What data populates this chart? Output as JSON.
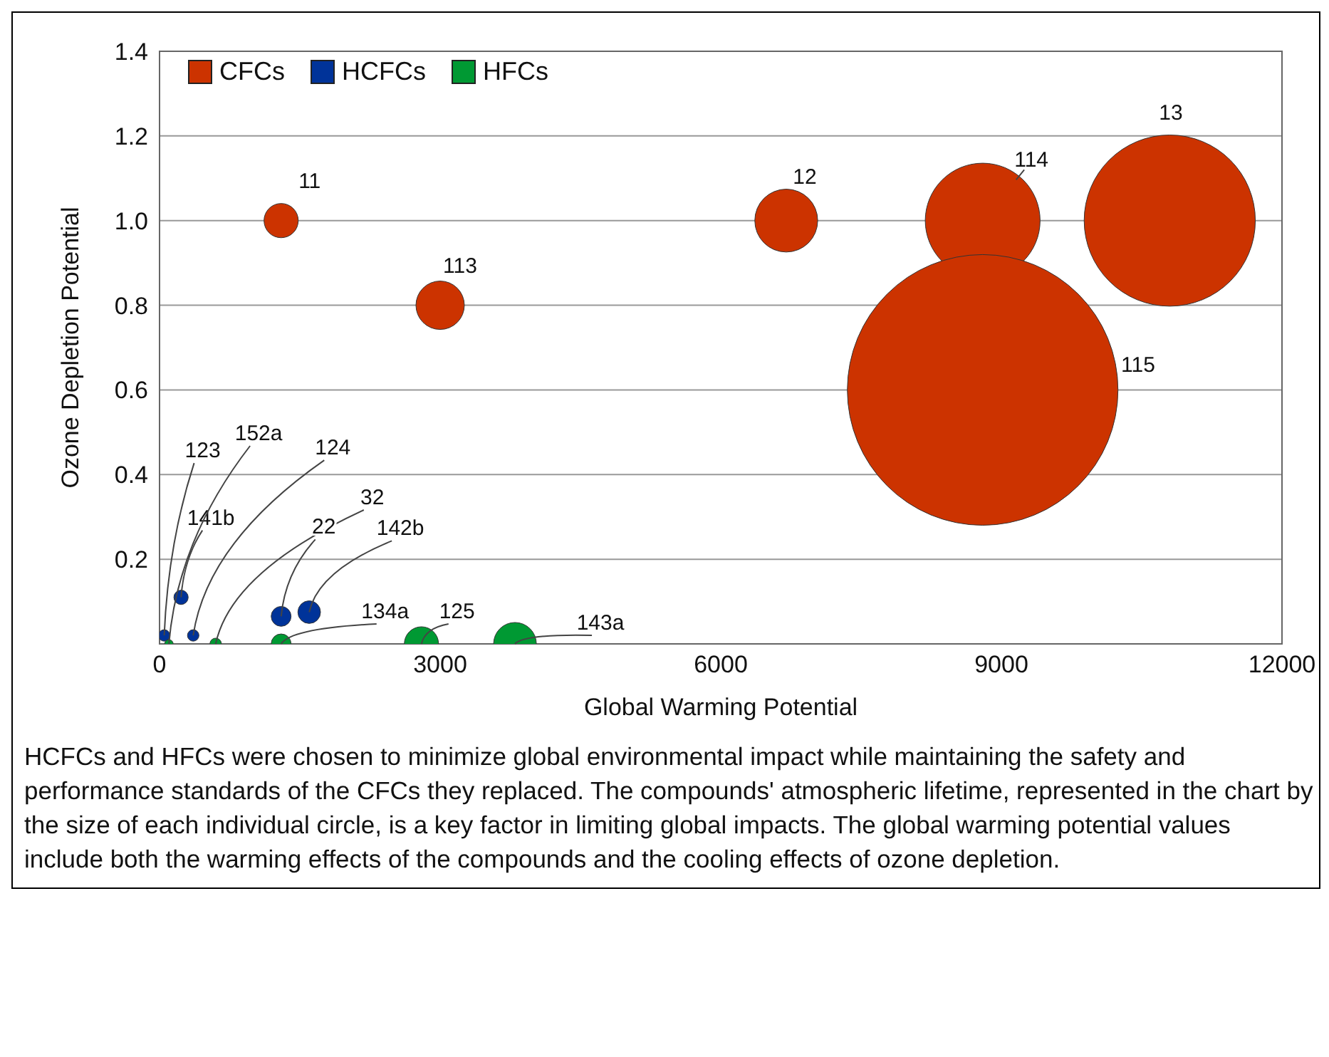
{
  "chart_data": {
    "type": "bubble",
    "xlabel": "Global Warming Potential",
    "ylabel": "Ozone Depletion Potential",
    "xlim": [
      0,
      12000
    ],
    "xticks": [
      0,
      3000,
      6000,
      9000,
      12000
    ],
    "ylim": [
      0,
      1.4
    ],
    "yticks": [
      0.2,
      0.4,
      0.6,
      0.8,
      {
        "value": 1.0,
        "label": "1.0"
      },
      1.2,
      1.4
    ],
    "grid": "y",
    "legend": "top left",
    "series": [
      {
        "name": "CFCs",
        "color": "#cc3300",
        "x": [
          1300,
          3000,
          6700,
          8800,
          10800,
          8800
        ],
        "values": [
          1.0,
          0.8,
          1.0,
          1.0,
          1.0,
          0.6
        ],
        "sizes": [
          0.016,
          0.032,
          0.054,
          0.18,
          0.4,
          1
        ]
      },
      {
        "name": "HCFCs",
        "color": "#003399",
        "x": [
          50,
          230,
          360,
          1300,
          1600
        ],
        "values": [
          0.02,
          0.11,
          0.02,
          0.065,
          0.075
        ],
        "sizes": [
          0.0018,
          0.0028,
          0.0018,
          0.0054,
          0.007
        ]
      },
      {
        "name": "HFCs",
        "color": "#009933",
        "x": [
          100,
          600,
          1300,
          2800,
          3800
        ],
        "values": [
          0,
          0,
          0,
          0,
          0
        ],
        "sizes": [
          0.001,
          0.0018,
          0.0054,
          0.016,
          0.025
        ]
      }
    ],
    "annotations": [
      {
        "text": "11",
        "x": 1300,
        "y": 1.0
      },
      {
        "text": "113",
        "x": 3000,
        "y": 0.8
      },
      {
        "text": "12",
        "x": 6700,
        "y": 1.0
      },
      {
        "text": "114",
        "x": 8800,
        "y": 1.0
      },
      "13",
      "115",
      {
        "text": "123",
        "x": 50,
        "y": 0.02
      },
      {
        "text": "141b",
        "x": 230,
        "y": 0.11
      },
      {
        "text": "152a",
        "x": 100,
        "y": 0
      },
      {
        "text": "124",
        "x": 360,
        "y": 0.02
      },
      {
        "text": "32",
        "x": 600,
        "y": 0
      },
      {
        "text": "22",
        "x": 1300,
        "y": 0.065
      },
      {
        "text": "142b",
        "x": 1600,
        "y": 0.075
      },
      {
        "text": "134a",
        "x": 1300,
        "y": 0
      },
      {
        "text": "125",
        "x": 2800,
        "y": 0
      },
      {
        "text": "143a",
        "x": 3800,
        "y": 0
      },
      "HCFCs and HFCs were chosen to minimize global environmental impact while maintaining the safety and performance standards of the CFCs they replaced.  The compounds' atmospheric lifetime, represented in the chart by the size of each individual circle, is a key factor in limiting global impacts.  The global warming potential values include both the warming effects of the compounds and the cooling effects of ozone depletion."
    ]
  }
}
